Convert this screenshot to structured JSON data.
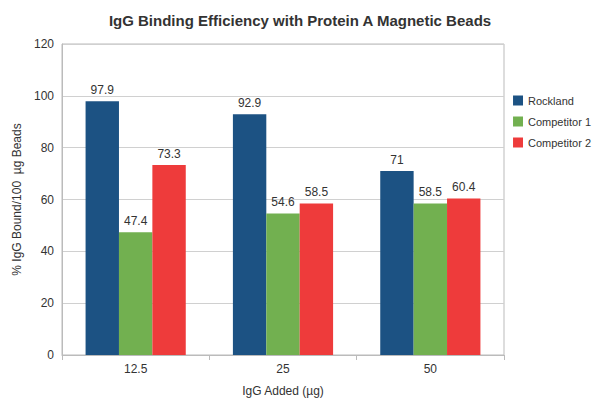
{
  "chart_data": {
    "type": "bar",
    "title": "IgG Binding Efficiency with Protein A Magnetic Beads",
    "xlabel": "IgG Added (µg)",
    "ylabel": "% IgG Bound/100  µg Beads",
    "categories": [
      "12.5",
      "25",
      "50"
    ],
    "series": [
      {
        "name": "Rockland",
        "color": "#1c5283",
        "values": [
          97.9,
          92.9,
          71
        ]
      },
      {
        "name": "Competitor 1",
        "color": "#72b050",
        "values": [
          47.4,
          54.6,
          58.5
        ]
      },
      {
        "name": "Competitor 2",
        "color": "#ee3b3b",
        "values": [
          73.3,
          58.5,
          60.4
        ]
      }
    ],
    "ylim": [
      0,
      120
    ],
    "yticks": [
      0,
      20,
      40,
      60,
      80,
      100,
      120
    ],
    "grid": true,
    "legend": "right",
    "data_labels": true
  }
}
